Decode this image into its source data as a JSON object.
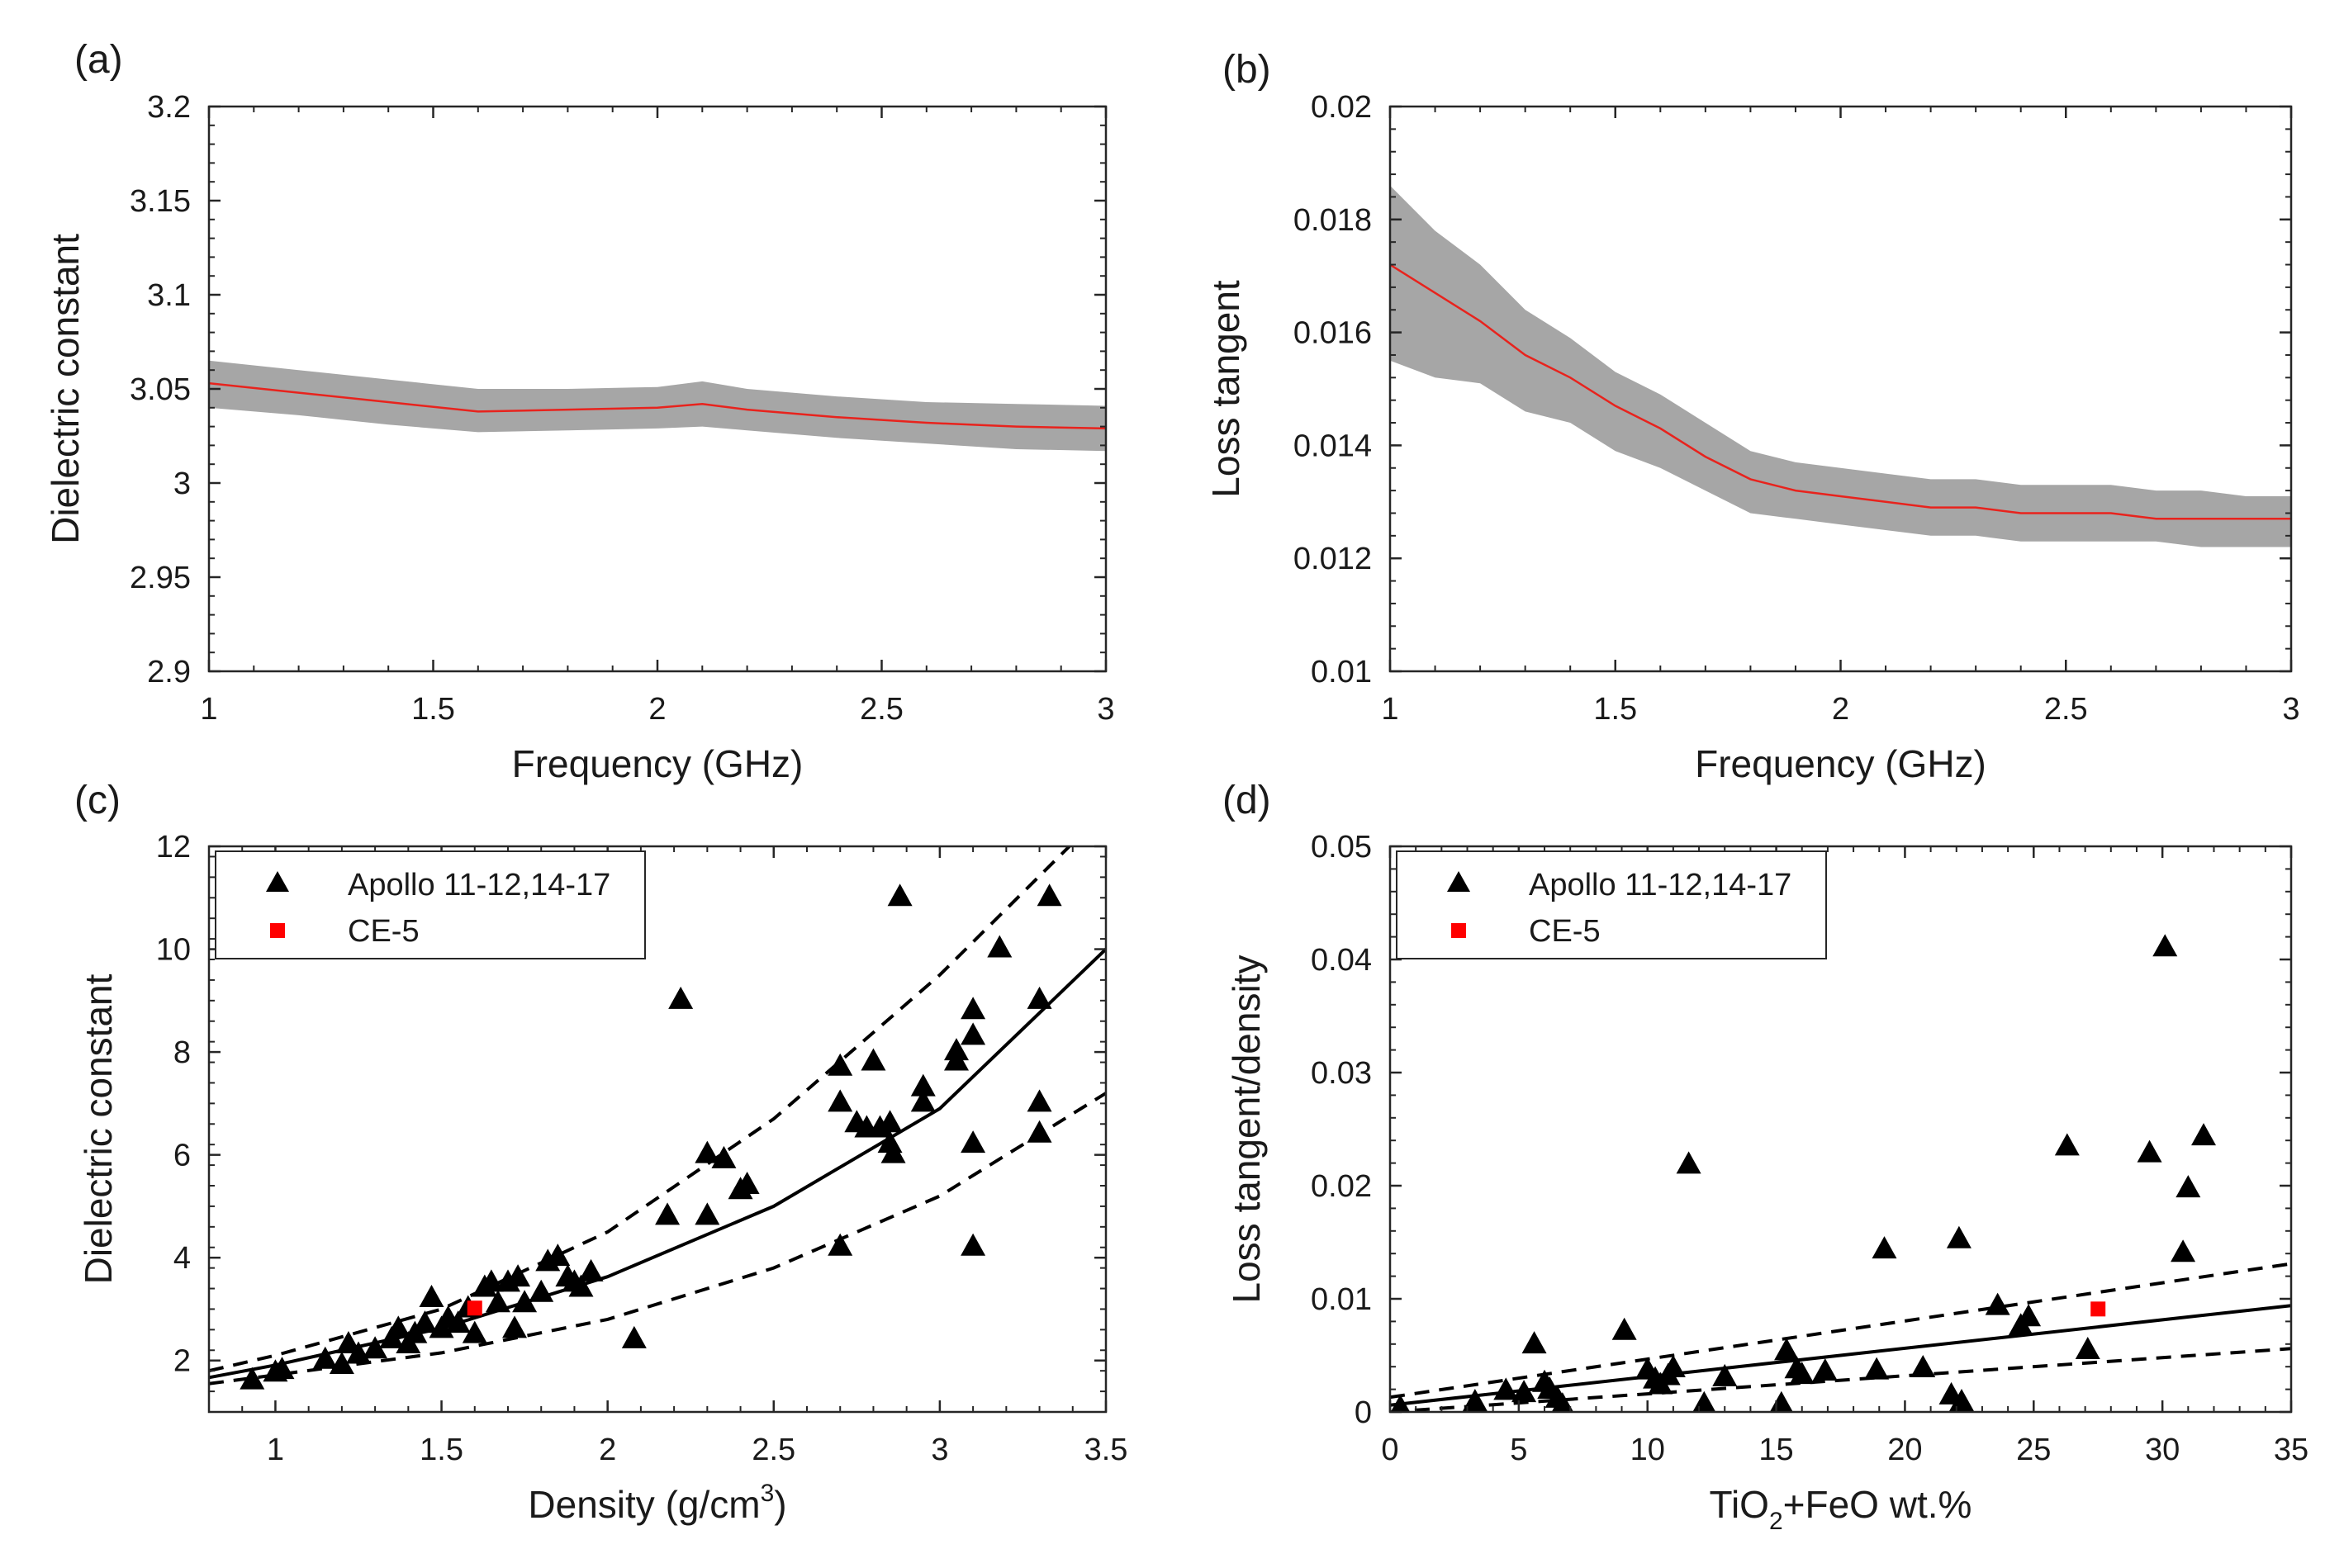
{
  "chart_data": [
    {
      "panel_label": "(a)",
      "type": "line",
      "title": "",
      "xlabel": "Frequency (GHz)",
      "ylabel": "Dielectric constant",
      "xlim": [
        1,
        3
      ],
      "ylim": [
        2.9,
        3.2
      ],
      "xticks": [
        "1",
        "1.5",
        "2",
        "2.5",
        "3"
      ],
      "yticks": [
        "2.9",
        "2.95",
        "3",
        "3.05",
        "3.1",
        "3.15",
        "3.2"
      ],
      "series": [
        {
          "name": "mean",
          "color": "#e8231d",
          "x": [
            1.0,
            1.2,
            1.4,
            1.6,
            1.8,
            2.0,
            2.1,
            2.2,
            2.4,
            2.6,
            2.8,
            3.0
          ],
          "y": [
            3.053,
            3.048,
            3.043,
            3.038,
            3.039,
            3.04,
            3.042,
            3.039,
            3.035,
            3.032,
            3.03,
            3.029
          ]
        },
        {
          "name": "band",
          "color": "#a6a6a6",
          "x": [
            1.0,
            1.2,
            1.4,
            1.6,
            1.8,
            2.0,
            2.1,
            2.2,
            2.4,
            2.6,
            2.8,
            3.0
          ],
          "upper": [
            3.065,
            3.06,
            3.055,
            3.05,
            3.05,
            3.051,
            3.054,
            3.05,
            3.046,
            3.043,
            3.042,
            3.041
          ],
          "lower": [
            3.04,
            3.036,
            3.031,
            3.027,
            3.028,
            3.029,
            3.03,
            3.028,
            3.024,
            3.021,
            3.018,
            3.017
          ]
        }
      ]
    },
    {
      "panel_label": "(b)",
      "type": "line",
      "title": "",
      "xlabel": "Frequency (GHz)",
      "ylabel": "Loss tangent",
      "xlim": [
        1,
        3
      ],
      "ylim": [
        0.01,
        0.02
      ],
      "xticks": [
        "1",
        "1.5",
        "2",
        "2.5",
        "3"
      ],
      "yticks": [
        "0.01",
        "0.012",
        "0.014",
        "0.016",
        "0.018",
        "0.02"
      ],
      "series": [
        {
          "name": "mean",
          "color": "#e8231d",
          "x": [
            1.0,
            1.1,
            1.2,
            1.3,
            1.4,
            1.5,
            1.6,
            1.7,
            1.8,
            1.9,
            2.0,
            2.1,
            2.2,
            2.3,
            2.4,
            2.5,
            2.6,
            2.7,
            2.8,
            2.9,
            3.0
          ],
          "y": [
            0.0172,
            0.0167,
            0.0162,
            0.0156,
            0.0152,
            0.0147,
            0.0143,
            0.0138,
            0.0134,
            0.0132,
            0.0131,
            0.013,
            0.0129,
            0.0129,
            0.0128,
            0.0128,
            0.0128,
            0.0127,
            0.0127,
            0.0127,
            0.0127
          ]
        },
        {
          "name": "band",
          "color": "#a6a6a6",
          "x": [
            1.0,
            1.1,
            1.2,
            1.3,
            1.4,
            1.5,
            1.6,
            1.7,
            1.8,
            1.9,
            2.0,
            2.1,
            2.2,
            2.3,
            2.4,
            2.5,
            2.6,
            2.7,
            2.8,
            2.9,
            3.0
          ],
          "upper": [
            0.0186,
            0.0178,
            0.0172,
            0.0164,
            0.0159,
            0.0153,
            0.0149,
            0.0144,
            0.0139,
            0.0137,
            0.0136,
            0.0135,
            0.0134,
            0.0134,
            0.0133,
            0.0133,
            0.0133,
            0.0132,
            0.0132,
            0.0131,
            0.0131
          ],
          "lower": [
            0.0155,
            0.0152,
            0.0151,
            0.0146,
            0.0144,
            0.0139,
            0.0136,
            0.0132,
            0.0128,
            0.0127,
            0.0126,
            0.0125,
            0.0124,
            0.0124,
            0.0123,
            0.0123,
            0.0123,
            0.0123,
            0.0122,
            0.0122,
            0.0122
          ]
        }
      ]
    },
    {
      "panel_label": "(c)",
      "type": "scatter",
      "title": "",
      "xlabel": "Density (g/cm",
      "xlabel_superscript": "3",
      "xlabel_suffix": ")",
      "ylabel": "Dielectric constant",
      "xlim": [
        0.8,
        3.5
      ],
      "ylim": [
        1,
        12
      ],
      "xticks": [
        "1",
        "1.5",
        "2",
        "2.5",
        "3",
        "3.5"
      ],
      "yticks": [
        "2",
        "4",
        "6",
        "8",
        "10",
        "12"
      ],
      "legend": {
        "position": "top-left",
        "entries": [
          {
            "label": "Apollo 11-12,14-17",
            "marker": "triangle",
            "color": "#000000"
          },
          {
            "label": "CE-5",
            "marker": "square",
            "color": "#ff0000"
          }
        ]
      },
      "series": [
        {
          "name": "Apollo 11-12,14-17",
          "marker": "triangle",
          "color": "#000000",
          "points": [
            [
              0.93,
              1.6
            ],
            [
              1.0,
              1.75
            ],
            [
              1.02,
              1.8
            ],
            [
              1.15,
              2.0
            ],
            [
              1.2,
              1.9
            ],
            [
              1.22,
              2.3
            ],
            [
              1.25,
              2.1
            ],
            [
              1.3,
              2.2
            ],
            [
              1.35,
              2.4
            ],
            [
              1.37,
              2.6
            ],
            [
              1.4,
              2.3
            ],
            [
              1.42,
              2.5
            ],
            [
              1.45,
              2.7
            ],
            [
              1.47,
              3.2
            ],
            [
              1.5,
              2.6
            ],
            [
              1.52,
              2.8
            ],
            [
              1.55,
              2.7
            ],
            [
              1.58,
              3.0
            ],
            [
              1.6,
              2.5
            ],
            [
              1.63,
              3.4
            ],
            [
              1.65,
              3.5
            ],
            [
              1.67,
              3.1
            ],
            [
              1.7,
              3.5
            ],
            [
              1.72,
              2.6
            ],
            [
              1.73,
              3.6
            ],
            [
              1.75,
              3.1
            ],
            [
              1.8,
              3.3
            ],
            [
              1.82,
              3.9
            ],
            [
              1.85,
              4.0
            ],
            [
              1.88,
              3.6
            ],
            [
              1.9,
              3.5
            ],
            [
              1.92,
              3.4
            ],
            [
              1.95,
              3.7
            ],
            [
              2.08,
              2.4
            ],
            [
              2.18,
              4.8
            ],
            [
              2.22,
              9.0
            ],
            [
              2.3,
              6.0
            ],
            [
              2.3,
              4.8
            ],
            [
              2.35,
              5.9
            ],
            [
              2.4,
              5.3
            ],
            [
              2.42,
              5.4
            ],
            [
              2.7,
              7.7
            ],
            [
              2.7,
              7.0
            ],
            [
              2.7,
              4.2
            ],
            [
              2.75,
              6.6
            ],
            [
              2.78,
              6.5
            ],
            [
              2.8,
              7.8
            ],
            [
              2.82,
              6.5
            ],
            [
              2.85,
              6.2
            ],
            [
              2.85,
              6.6
            ],
            [
              2.86,
              6.0
            ],
            [
              2.88,
              11.0
            ],
            [
              2.95,
              7.3
            ],
            [
              2.95,
              7.0
            ],
            [
              3.05,
              8.0
            ],
            [
              3.05,
              7.8
            ],
            [
              3.1,
              8.8
            ],
            [
              3.1,
              8.3
            ],
            [
              3.1,
              6.2
            ],
            [
              3.1,
              4.2
            ],
            [
              3.18,
              10.0
            ],
            [
              3.3,
              9.0
            ],
            [
              3.3,
              7.0
            ],
            [
              3.3,
              6.4
            ],
            [
              3.33,
              11.0
            ]
          ]
        },
        {
          "name": "CE-5",
          "marker": "square",
          "color": "#ff0000",
          "points": [
            [
              1.6,
              3.02
            ]
          ]
        },
        {
          "name": "fit",
          "line": "solid",
          "x": [
            0.8,
            1.0,
            1.5,
            2.0,
            2.5,
            3.0,
            3.5
          ],
          "y": [
            1.67,
            1.91,
            2.63,
            3.63,
            5.0,
            6.9,
            10.0
          ]
        },
        {
          "name": "upper bound",
          "line": "dashed",
          "x": [
            0.8,
            1.0,
            1.5,
            2.0,
            2.5,
            3.0,
            3.39
          ],
          "y": [
            1.8,
            2.1,
            3.0,
            4.5,
            6.7,
            9.5,
            12.0
          ]
        },
        {
          "name": "lower bound",
          "line": "dashed",
          "x": [
            0.8,
            1.0,
            1.5,
            2.0,
            2.5,
            3.0,
            3.5
          ],
          "y": [
            1.55,
            1.72,
            2.15,
            2.8,
            3.8,
            5.2,
            7.2
          ]
        }
      ]
    },
    {
      "panel_label": "(d)",
      "type": "scatter",
      "title": "",
      "xlabel": "TiO",
      "xlabel_subscript": "2",
      "xlabel_suffix": "+FeO wt.%",
      "ylabel": "Loss tangent/density",
      "xlim": [
        0,
        35
      ],
      "ylim": [
        0,
        0.05
      ],
      "xticks": [
        "0",
        "5",
        "10",
        "15",
        "20",
        "25",
        "30",
        "35"
      ],
      "yticks": [
        "0",
        "0.01",
        "0.02",
        "0.03",
        "0.04",
        "0.05"
      ],
      "legend": {
        "position": "top-left",
        "entries": [
          {
            "label": "Apollo 11-12,14-17",
            "marker": "triangle",
            "color": "#000000"
          },
          {
            "label": "CE-5",
            "marker": "square",
            "color": "#ff0000"
          }
        ]
      },
      "series": [
        {
          "name": "Apollo 11-12,14-17",
          "marker": "triangle",
          "color": "#000000",
          "points": [
            [
              0.4,
              0.0003
            ],
            [
              3.3,
              0.0008
            ],
            [
              4.5,
              0.0018
            ],
            [
              5.2,
              0.0016
            ],
            [
              5.6,
              0.0059
            ],
            [
              6.0,
              0.0025
            ],
            [
              6.2,
              0.0019
            ],
            [
              6.5,
              0.0011
            ],
            [
              6.7,
              0.0005
            ],
            [
              9.1,
              0.0071
            ],
            [
              10.0,
              0.0036
            ],
            [
              10.3,
              0.0028
            ],
            [
              10.5,
              0.0023
            ],
            [
              10.8,
              0.0031
            ],
            [
              11.0,
              0.0038
            ],
            [
              11.6,
              0.0218
            ],
            [
              12.2,
              0.0006
            ],
            [
              13.0,
              0.003
            ],
            [
              15.2,
              0.0006
            ],
            [
              15.4,
              0.0053
            ],
            [
              15.8,
              0.0037
            ],
            [
              16.0,
              0.0032
            ],
            [
              16.9,
              0.0035
            ],
            [
              18.9,
              0.0036
            ],
            [
              19.2,
              0.0143
            ],
            [
              20.7,
              0.0038
            ],
            [
              21.8,
              0.0014
            ],
            [
              22.1,
              0.0152
            ],
            [
              22.2,
              0.0008
            ],
            [
              23.6,
              0.0093
            ],
            [
              24.5,
              0.0075
            ],
            [
              24.8,
              0.0083
            ],
            [
              26.3,
              0.0234
            ],
            [
              27.1,
              0.0054
            ],
            [
              29.5,
              0.0228
            ],
            [
              30.1,
              0.041
            ],
            [
              30.8,
              0.014
            ],
            [
              31.0,
              0.0197
            ],
            [
              31.6,
              0.0243
            ]
          ]
        },
        {
          "name": "CE-5",
          "marker": "square",
          "color": "#ff0000",
          "points": [
            [
              27.5,
              0.0091
            ]
          ]
        },
        {
          "name": "fit",
          "line": "solid",
          "x": [
            0,
            35
          ],
          "y": [
            0.0006,
            0.0094
          ]
        },
        {
          "name": "upper bound",
          "line": "dashed",
          "x": [
            0,
            35
          ],
          "y": [
            0.0013,
            0.0131
          ]
        },
        {
          "name": "lower bound",
          "line": "dashed",
          "x": [
            0,
            35
          ],
          "y": [
            0.0,
            0.0056
          ]
        }
      ]
    }
  ]
}
